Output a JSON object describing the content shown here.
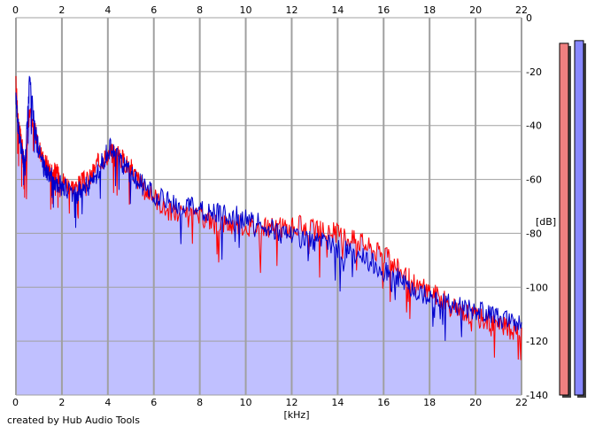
{
  "chart_data": {
    "type": "area",
    "xlabel": "[kHz]",
    "ylabel": "[dB]",
    "xlim": [
      0,
      22
    ],
    "ylim": [
      -140,
      0
    ],
    "x_ticks": [
      "0",
      "2",
      "4",
      "6",
      "8",
      "10",
      "12",
      "14",
      "16",
      "18",
      "20",
      "22"
    ],
    "y_ticks": [
      "0",
      "-20",
      "-40",
      "-60",
      "-80",
      "-100",
      "-120",
      "-140"
    ],
    "grid": true,
    "series": [
      {
        "color": "#ff0000",
        "x": [
          0,
          0.1,
          0.2,
          0.3,
          0.4,
          0.6,
          0.8,
          1.0,
          1.2,
          1.4,
          1.6,
          1.8,
          2.0,
          2.3,
          2.6,
          2.9,
          3.2,
          3.5,
          3.8,
          4.1,
          4.4,
          4.7,
          5.0,
          5.3,
          5.6,
          6.0,
          6.5,
          7.0,
          7.5,
          8.0,
          8.5,
          9.0,
          9.5,
          10.0,
          10.5,
          11.0,
          11.5,
          12.0,
          12.5,
          13.0,
          13.5,
          14.0,
          14.5,
          15.0,
          15.5,
          16.0,
          16.5,
          17.0,
          17.5,
          18.0,
          18.5,
          19.0,
          19.5,
          20.0,
          20.5,
          21.0,
          21.5,
          22.0
        ],
        "values": [
          -25,
          -38,
          -45,
          -50,
          -56,
          -36,
          -42,
          -48,
          -53,
          -55,
          -57,
          -58,
          -60,
          -62,
          -63,
          -61,
          -60,
          -55,
          -52,
          -50,
          -51,
          -53,
          -56,
          -60,
          -64,
          -66,
          -71,
          -73,
          -74,
          -74,
          -75,
          -76,
          -77,
          -77,
          -78,
          -78,
          -78,
          -78,
          -77,
          -79,
          -79,
          -80,
          -82,
          -83,
          -86,
          -88,
          -92,
          -96,
          -100,
          -101,
          -104,
          -108,
          -109,
          -111,
          -112,
          -114,
          -116,
          -115
        ]
      },
      {
        "color": "#0000cc",
        "x": [
          0,
          0.1,
          0.2,
          0.3,
          0.4,
          0.6,
          0.8,
          1.0,
          1.2,
          1.4,
          1.6,
          1.8,
          2.0,
          2.3,
          2.6,
          2.9,
          3.2,
          3.5,
          3.8,
          4.1,
          4.4,
          4.7,
          5.0,
          5.3,
          5.6,
          6.0,
          6.5,
          7.0,
          7.5,
          8.0,
          8.5,
          9.0,
          9.5,
          10.0,
          10.5,
          11.0,
          11.5,
          12.0,
          12.5,
          13.0,
          13.5,
          14.0,
          14.5,
          15.0,
          15.5,
          16.0,
          16.5,
          17.0,
          17.5,
          18.0,
          18.5,
          19.0,
          19.5,
          20.0,
          20.5,
          21.0,
          21.5,
          22.0
        ],
        "values": [
          -30,
          -40,
          -48,
          -52,
          -55,
          -22,
          -40,
          -50,
          -55,
          -58,
          -60,
          -61,
          -63,
          -64,
          -66,
          -63,
          -62,
          -58,
          -53,
          -48,
          -52,
          -55,
          -58,
          -60,
          -63,
          -66,
          -68,
          -70,
          -70,
          -72,
          -72,
          -73,
          -73,
          -75,
          -76,
          -78,
          -80,
          -80,
          -82,
          -83,
          -84,
          -86,
          -87,
          -88,
          -91,
          -94,
          -96,
          -100,
          -102,
          -103,
          -105,
          -106,
          -108,
          -109,
          -110,
          -111,
          -112,
          -113
        ]
      }
    ],
    "level_meters": [
      {
        "color": "#f08080",
        "value": -9.5
      },
      {
        "color": "#8888ff",
        "value": -8.5
      }
    ],
    "fill_color": "#c0c0ff",
    "grid_color": "#a0a0a0",
    "footer": "created by Hub Audio Tools"
  }
}
